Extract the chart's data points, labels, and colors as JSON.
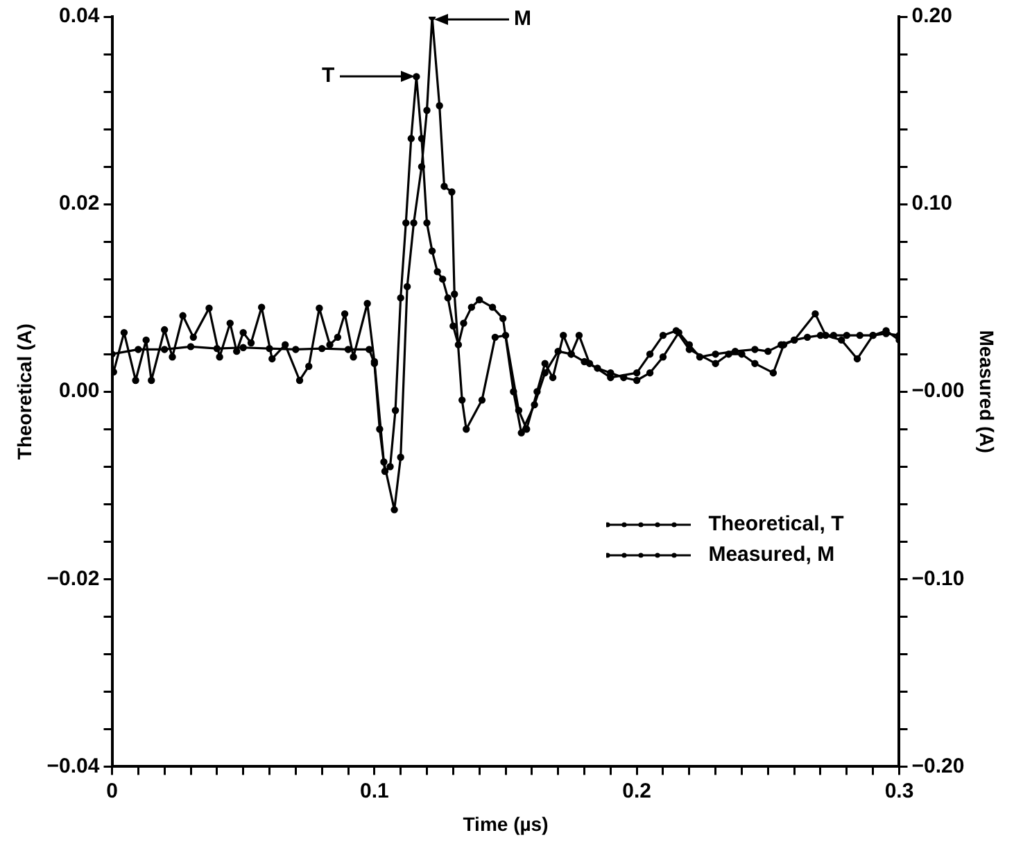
{
  "chart_data": {
    "type": "line",
    "xlabel": "Time (µs)",
    "ylabel": "Theoretical (A)",
    "y2label": "Measured (A)",
    "xlim": [
      0,
      0.3
    ],
    "xticks": [
      0,
      {
        "value": 0.01,
        "label": null
      },
      {
        "value": 0.02,
        "label": null
      },
      {
        "value": 0.03,
        "label": null
      },
      {
        "value": 0.04,
        "label": null
      },
      {
        "value": 0.05,
        "label": null
      },
      {
        "value": 0.06,
        "label": null
      },
      {
        "value": 0.07,
        "label": null
      },
      {
        "value": 0.08,
        "label": null
      },
      {
        "value": 0.09,
        "label": null
      },
      {
        "value": 0.1,
        "label": "0.1"
      },
      {
        "value": 0.11,
        "label": null
      },
      {
        "value": 0.12,
        "label": null
      },
      {
        "value": 0.13,
        "label": null
      },
      {
        "value": 0.14,
        "label": null
      },
      {
        "value": 0.15,
        "label": null
      },
      {
        "value": 0.16,
        "label": null
      },
      {
        "value": 0.17,
        "label": null
      },
      {
        "value": 0.18,
        "label": null
      },
      {
        "value": 0.19,
        "label": null
      },
      {
        "value": 0.2,
        "label": "0.2"
      },
      {
        "value": 0.21,
        "label": null
      },
      {
        "value": 0.22,
        "label": null
      },
      {
        "value": 0.23,
        "label": null
      },
      {
        "value": 0.24,
        "label": null
      },
      {
        "value": 0.25,
        "label": null
      },
      {
        "value": 0.26,
        "label": null
      },
      {
        "value": 0.27,
        "label": null
      },
      {
        "value": 0.28,
        "label": null
      },
      {
        "value": 0.29,
        "label": null
      },
      {
        "value": 0.3,
        "label": "0.3"
      }
    ],
    "ylim": [
      -0.04,
      0.04
    ],
    "yticks": [
      {
        "value": -0.04,
        "label": "−0.04"
      },
      {
        "value": -0.036,
        "label": null
      },
      {
        "value": -0.032,
        "label": null
      },
      {
        "value": -0.028,
        "label": null
      },
      {
        "value": -0.024,
        "label": null
      },
      {
        "value": -0.02,
        "label": "−0.02"
      },
      {
        "value": -0.016,
        "label": null
      },
      {
        "value": -0.012,
        "label": null
      },
      {
        "value": -0.008,
        "label": null
      },
      {
        "value": -0.004,
        "label": null
      },
      {
        "value": 0,
        "label": "0.00"
      },
      {
        "value": 0.004,
        "label": null
      },
      {
        "value": 0.008,
        "label": null
      },
      {
        "value": 0.012,
        "label": null
      },
      {
        "value": 0.016,
        "label": null
      },
      {
        "value": 0.02,
        "label": "0.02"
      },
      {
        "value": 0.024,
        "label": null
      },
      {
        "value": 0.028,
        "label": null
      },
      {
        "value": 0.032,
        "label": null
      },
      {
        "value": 0.036,
        "label": null
      },
      {
        "value": 0.04,
        "label": "0.04"
      }
    ],
    "y2lim": [
      -0.2,
      0.2
    ],
    "y2ticks": [
      {
        "value": -0.2,
        "label": "−0.20"
      },
      {
        "value": -0.18,
        "label": null
      },
      {
        "value": -0.16,
        "label": null
      },
      {
        "value": -0.14,
        "label": null
      },
      {
        "value": -0.12,
        "label": null
      },
      {
        "value": -0.1,
        "label": "−0.10"
      },
      {
        "value": -0.08,
        "label": null
      },
      {
        "value": -0.06,
        "label": null
      },
      {
        "value": -0.04,
        "label": null
      },
      {
        "value": -0.02,
        "label": null
      },
      {
        "value": 0,
        "label": "−0.00"
      },
      {
        "value": 0.02,
        "label": null
      },
      {
        "value": 0.04,
        "label": null
      },
      {
        "value": 0.06,
        "label": null
      },
      {
        "value": 0.08,
        "label": null
      },
      {
        "value": 0.1,
        "label": "0.10"
      },
      {
        "value": 0.12,
        "label": null
      },
      {
        "value": 0.14,
        "label": null
      },
      {
        "value": 0.16,
        "label": null
      },
      {
        "value": 0.18,
        "label": null
      },
      {
        "value": 0.2,
        "label": "0.20"
      }
    ],
    "grid": false,
    "legend": "bottom right",
    "marker": "circle",
    "line_style": "solid",
    "series": [
      {
        "name": "Theoretical, T",
        "color": "#000000",
        "x": [
          0,
          0.01,
          0.02,
          0.03,
          0.04,
          0.05,
          0.06,
          0.07,
          0.08,
          0.09,
          0.098,
          0.1,
          0.102,
          0.104,
          0.106,
          0.108,
          0.11,
          0.112,
          0.114,
          0.116,
          0.118,
          0.12,
          0.122,
          0.124,
          0.126,
          0.128,
          0.13,
          0.132,
          0.134,
          0.137,
          0.14,
          0.145,
          0.149,
          0.153,
          0.156,
          0.161,
          0.165,
          0.17,
          0.175,
          0.18,
          0.185,
          0.19,
          0.195,
          0.2,
          0.205,
          0.21,
          0.216,
          0.22,
          0.224,
          0.23,
          0.2375,
          0.245,
          0.25,
          0.255,
          0.26,
          0.265,
          0.27,
          0.275,
          0.28,
          0.285,
          0.29,
          0.295,
          0.3
        ],
        "values": [
          0.004,
          0.0045,
          0.0045,
          0.0048,
          0.0046,
          0.0047,
          0.0046,
          0.0045,
          0.0046,
          0.0045,
          0.0045,
          0.003,
          -0.004,
          -0.0085,
          -0.008,
          -0.002,
          0.01,
          0.018,
          0.027,
          0.0336,
          0.027,
          0.018,
          0.015,
          0.0128,
          0.012,
          0.01,
          0.007,
          0.005,
          0.0073,
          0.009,
          0.0098,
          0.009,
          0.0078,
          0,
          -0.0044,
          -0.0014,
          0.002,
          0.0043,
          0.004,
          0.0032,
          0.0025,
          0.002,
          0.0015,
          0.0012,
          0.002,
          0.0037,
          0.0063,
          0.005,
          0.0037,
          0.004,
          0.0043,
          0.0045,
          0.0043,
          0.005,
          0.0055,
          0.0058,
          0.006,
          0.006,
          0.006,
          0.006,
          0.006,
          0.0062,
          0.006
        ]
      },
      {
        "name": "Measured, M",
        "color": "#000000",
        "axis": "y2",
        "x": [
          0.0006,
          0.0046,
          0.009,
          0.013,
          0.015,
          0.02,
          0.023,
          0.027,
          0.031,
          0.037,
          0.041,
          0.045,
          0.0475,
          0.05,
          0.053,
          0.057,
          0.061,
          0.066,
          0.0715,
          0.075,
          0.079,
          0.083,
          0.086,
          0.0887,
          0.092,
          0.0973,
          0.1,
          0.1036,
          0.1076,
          0.11,
          0.1125,
          0.115,
          0.118,
          0.12,
          0.122,
          0.1248,
          0.1266,
          0.1295,
          0.1305,
          0.1334,
          0.135,
          0.141,
          0.146,
          0.15,
          0.155,
          0.158,
          0.162,
          0.165,
          0.168,
          0.172,
          0.175,
          0.178,
          0.182,
          0.19,
          0.2,
          0.205,
          0.21,
          0.215,
          0.22,
          0.23,
          0.235,
          0.24,
          0.245,
          0.252,
          0.256,
          0.26,
          0.268,
          0.272,
          0.278,
          0.284,
          0.29,
          0.295,
          0.3
        ],
        "values": [
          0.0105,
          0.0315,
          0.006,
          0.0275,
          0.006,
          0.033,
          0.0185,
          0.0405,
          0.029,
          0.0445,
          0.0185,
          0.0365,
          0.0215,
          0.0315,
          0.026,
          0.045,
          0.0175,
          0.025,
          0.006,
          0.0135,
          0.0445,
          0.025,
          0.029,
          0.0415,
          0.0185,
          0.047,
          0.016,
          -0.0375,
          -0.063,
          -0.035,
          0.056,
          0.09,
          0.12,
          0.15,
          0.2,
          0.1525,
          0.1095,
          0.1065,
          0.052,
          -0.0045,
          -0.02,
          -0.0045,
          0.029,
          0.03,
          -0.01,
          -0.02,
          0,
          0.015,
          0.0075,
          0.03,
          0.02,
          0.03,
          0.015,
          0.0075,
          0.01,
          0.02,
          0.03,
          0.0325,
          0.0225,
          0.015,
          0.02,
          0.02,
          0.015,
          0.01,
          0.025,
          0.0275,
          0.0415,
          0.03,
          0.0275,
          0.0175,
          0.03,
          0.0325,
          0.0275
        ]
      }
    ],
    "annotations": [
      "T",
      "M"
    ]
  }
}
